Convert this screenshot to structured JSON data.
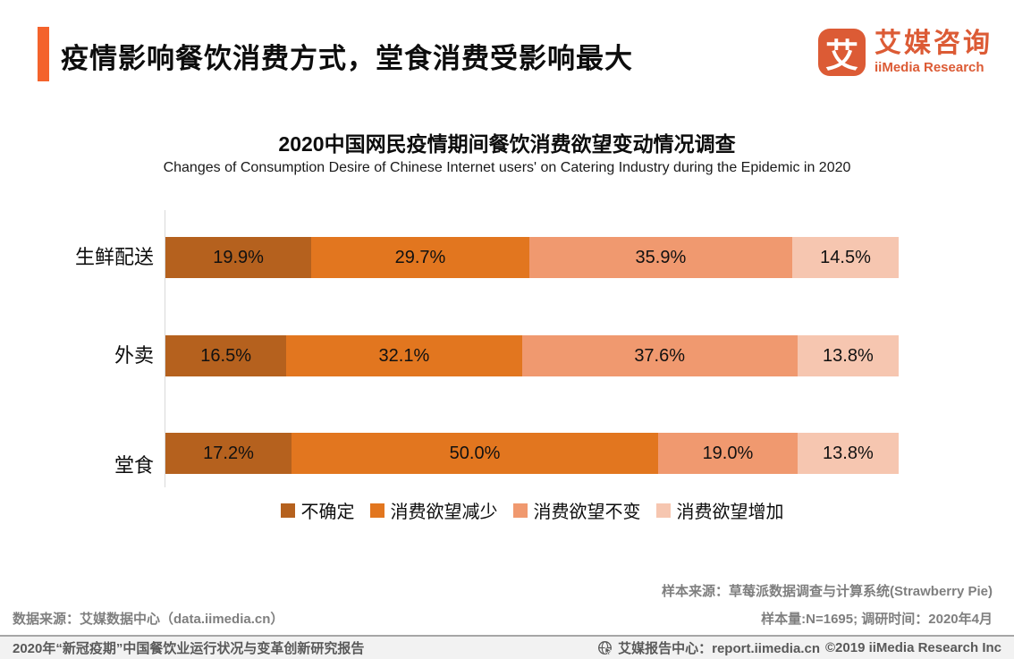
{
  "header": {
    "title": "疫情影响餐饮消费方式，堂食消费受影响最大",
    "logo": {
      "glyph": "艾",
      "name_cn": "艾媒咨询",
      "name_en": "iiMedia Research"
    }
  },
  "chart": {
    "title_cn": "2020中国网民疫情期间餐饮消费欲望变动情况调查",
    "title_en": "Changes of Consumption Desire of Chinese Internet users' on Catering Industry during the Epidemic in 2020"
  },
  "chart_data": {
    "type": "bar",
    "orientation": "horizontal-stacked",
    "categories": [
      "生鲜配送",
      "外卖",
      "堂食"
    ],
    "series": [
      {
        "name": "不确定",
        "color": "#B5611E",
        "values": [
          19.9,
          16.5,
          17.2
        ]
      },
      {
        "name": "消费欲望减少",
        "color": "#E2761F",
        "values": [
          29.7,
          32.1,
          50.0
        ]
      },
      {
        "name": "消费欲望不变",
        "color": "#F0996F",
        "values": [
          35.9,
          37.6,
          19.0
        ]
      },
      {
        "name": "消费欲望增加",
        "color": "#F6C6B0",
        "values": [
          14.5,
          13.8,
          13.8
        ]
      }
    ],
    "value_suffix": "%",
    "xlim": [
      0,
      100
    ],
    "legend_position": "bottom",
    "grid": false
  },
  "footer": {
    "sample_source": "样本来源：草莓派数据调查与计算系统(Strawberry Pie)",
    "sample_info": "样本量:N=1695; 调研时间：2020年4月",
    "data_source": "数据来源：艾媒数据中心（data.iimedia.cn）"
  },
  "bottom_bar": {
    "report_title": "2020年“新冠疫期”中国餐饮业运行状况与变革创新研究报告",
    "report_center": "艾媒报告中心：report.iimedia.cn",
    "copyright": "©2019  iiMedia Research  Inc"
  },
  "colors": {
    "accent": "#F4632C",
    "brand": "#DC5B35"
  }
}
